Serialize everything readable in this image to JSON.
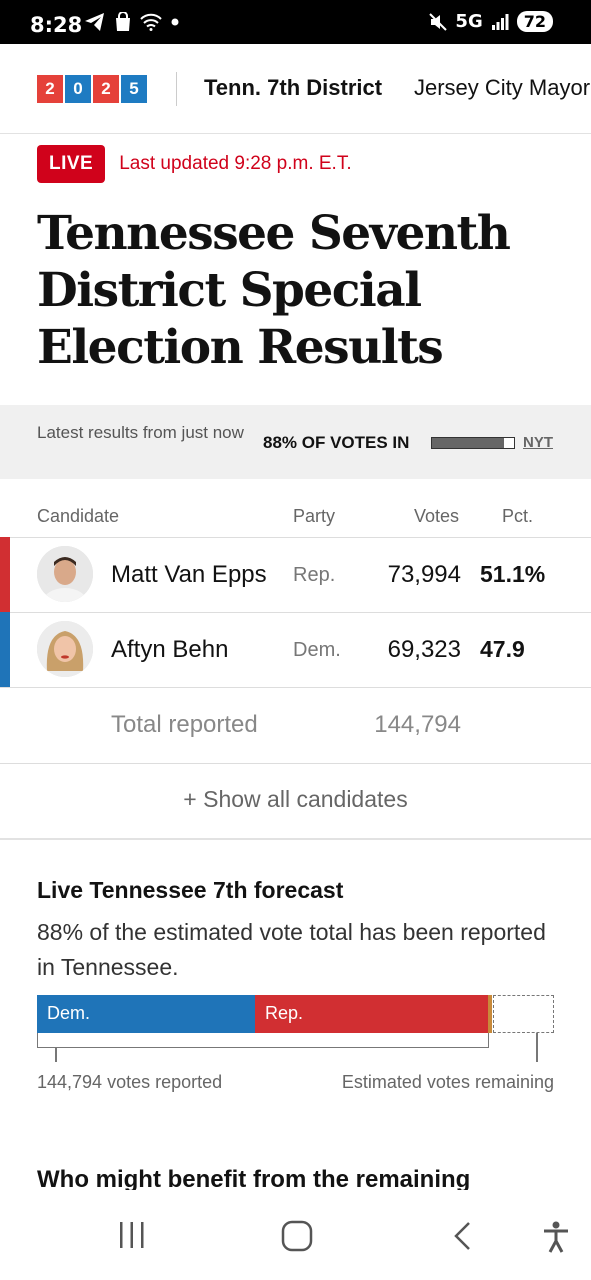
{
  "status_bar": {
    "time": "8:28",
    "network": "5G",
    "battery": "72",
    "icons": [
      "telegram-icon",
      "shopping-bag-icon",
      "wifi-icon",
      "dot-icon",
      "mute-icon",
      "signal-icon",
      "battery-icon"
    ]
  },
  "nav": {
    "logo_digits": [
      "2",
      "0",
      "2",
      "5"
    ],
    "items": [
      {
        "label": "Tenn. 7th District"
      },
      {
        "label": "Jersey City Mayor"
      }
    ]
  },
  "live": {
    "badge": "LIVE",
    "updated": "Last updated 9:28 p.m. E.T."
  },
  "headline": "Tennessee Seventh District Special Election Results",
  "results_bar": {
    "latest": "Latest results from just now",
    "votes_in": "88% OF VOTES IN",
    "votes_in_fraction": 0.88,
    "source": "NYT"
  },
  "table": {
    "headers": {
      "candidate": "Candidate",
      "party": "Party",
      "votes": "Votes",
      "pct": "Pct."
    },
    "rows": [
      {
        "name": "Matt Van Epps",
        "party": "Rep.",
        "votes": "73,994",
        "pct": "51.1%",
        "color": "#d12f32"
      },
      {
        "name": "Aftyn Behn",
        "party": "Dem.",
        "votes": "69,323",
        "pct": "47.9",
        "color": "#1f74b8"
      }
    ],
    "total_label": "Total reported",
    "total_votes": "144,794",
    "show_all": "+ Show all candidates"
  },
  "forecast": {
    "title": "Live Tennessee 7th forecast",
    "description": "88% of the estimated vote total has been reported in Tennessee.",
    "dem_label": "Dem.",
    "rep_label": "Rep.",
    "dem_share_of_reported": 0.479,
    "rep_share_of_reported": 0.511,
    "other_share_of_reported": 0.01,
    "reported_fraction": 0.88,
    "reported_label": "144,794 votes reported",
    "remaining_label": "Estimated votes remaining",
    "colors": {
      "dem": "#1f74b8",
      "rep": "#d12f32",
      "other": "#c88a3a"
    }
  },
  "next_section_heading": "Who might benefit from the remaining",
  "system_nav": {
    "icons": [
      "recent-apps-icon",
      "home-icon",
      "back-icon",
      "accessibility-icon"
    ]
  }
}
